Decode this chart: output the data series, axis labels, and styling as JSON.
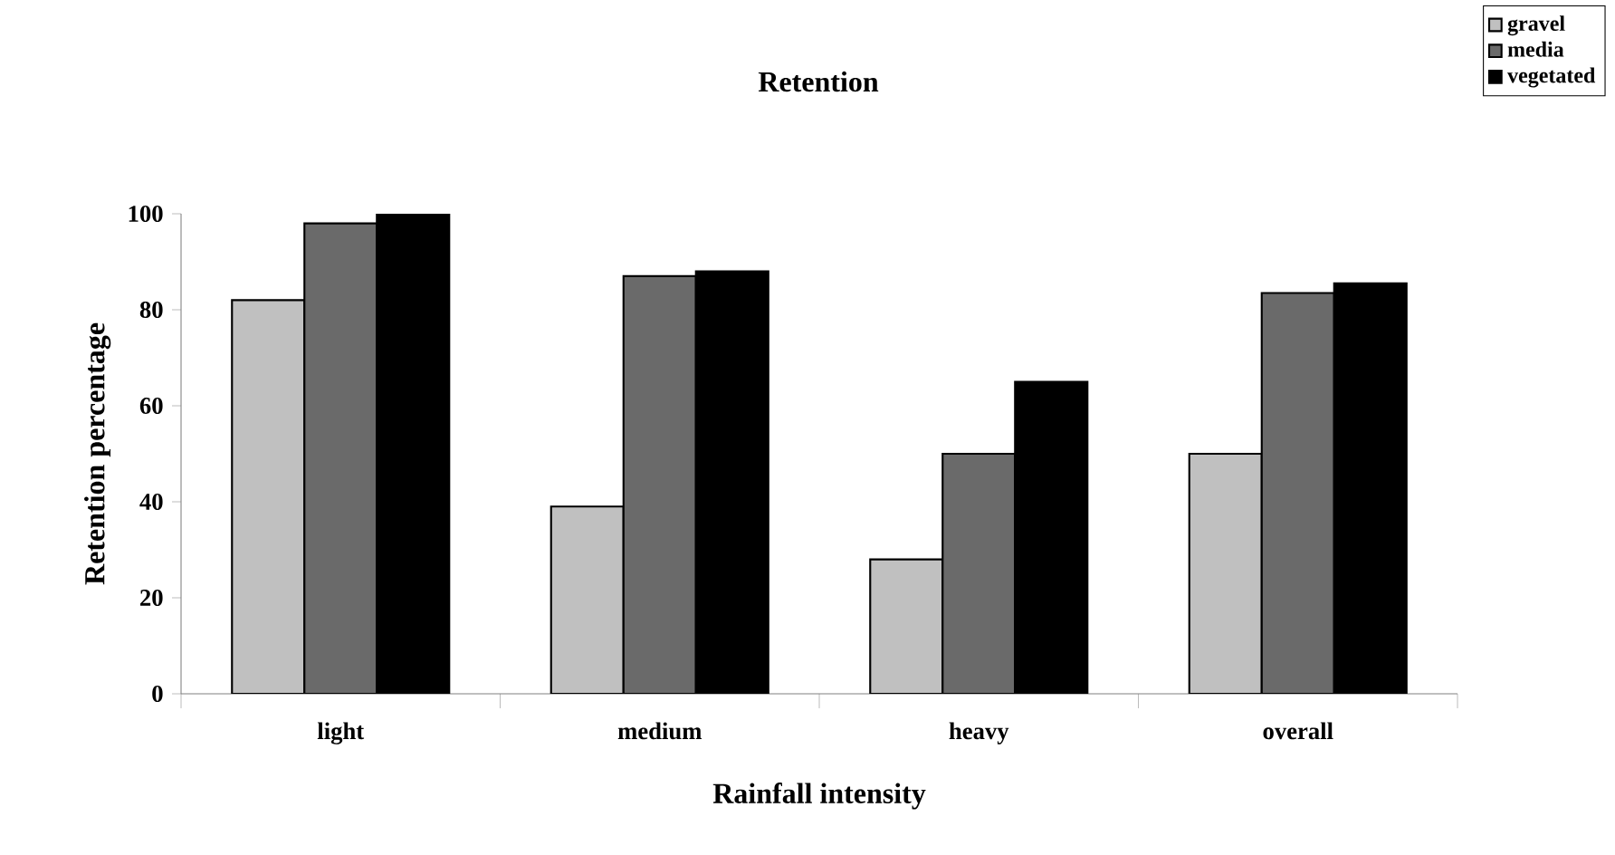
{
  "chart_data": {
    "type": "bar",
    "title": "Retention",
    "xlabel": "Rainfall intensity",
    "ylabel": "Retention percentage",
    "categories": [
      "light",
      "medium",
      "heavy",
      "overall"
    ],
    "series": [
      {
        "name": "gravel",
        "color": "#c0c0c0",
        "values": [
          82,
          39,
          28,
          50
        ]
      },
      {
        "name": "media",
        "color": "#6a6a6a",
        "values": [
          98,
          87,
          50,
          83.5
        ]
      },
      {
        "name": "vegetated",
        "color": "#000000",
        "values": [
          100,
          88,
          65,
          85.5
        ]
      }
    ],
    "ylim": [
      0,
      100
    ],
    "yticks": [
      0,
      20,
      40,
      60,
      80,
      100
    ],
    "grid": false,
    "legend": "top right"
  }
}
